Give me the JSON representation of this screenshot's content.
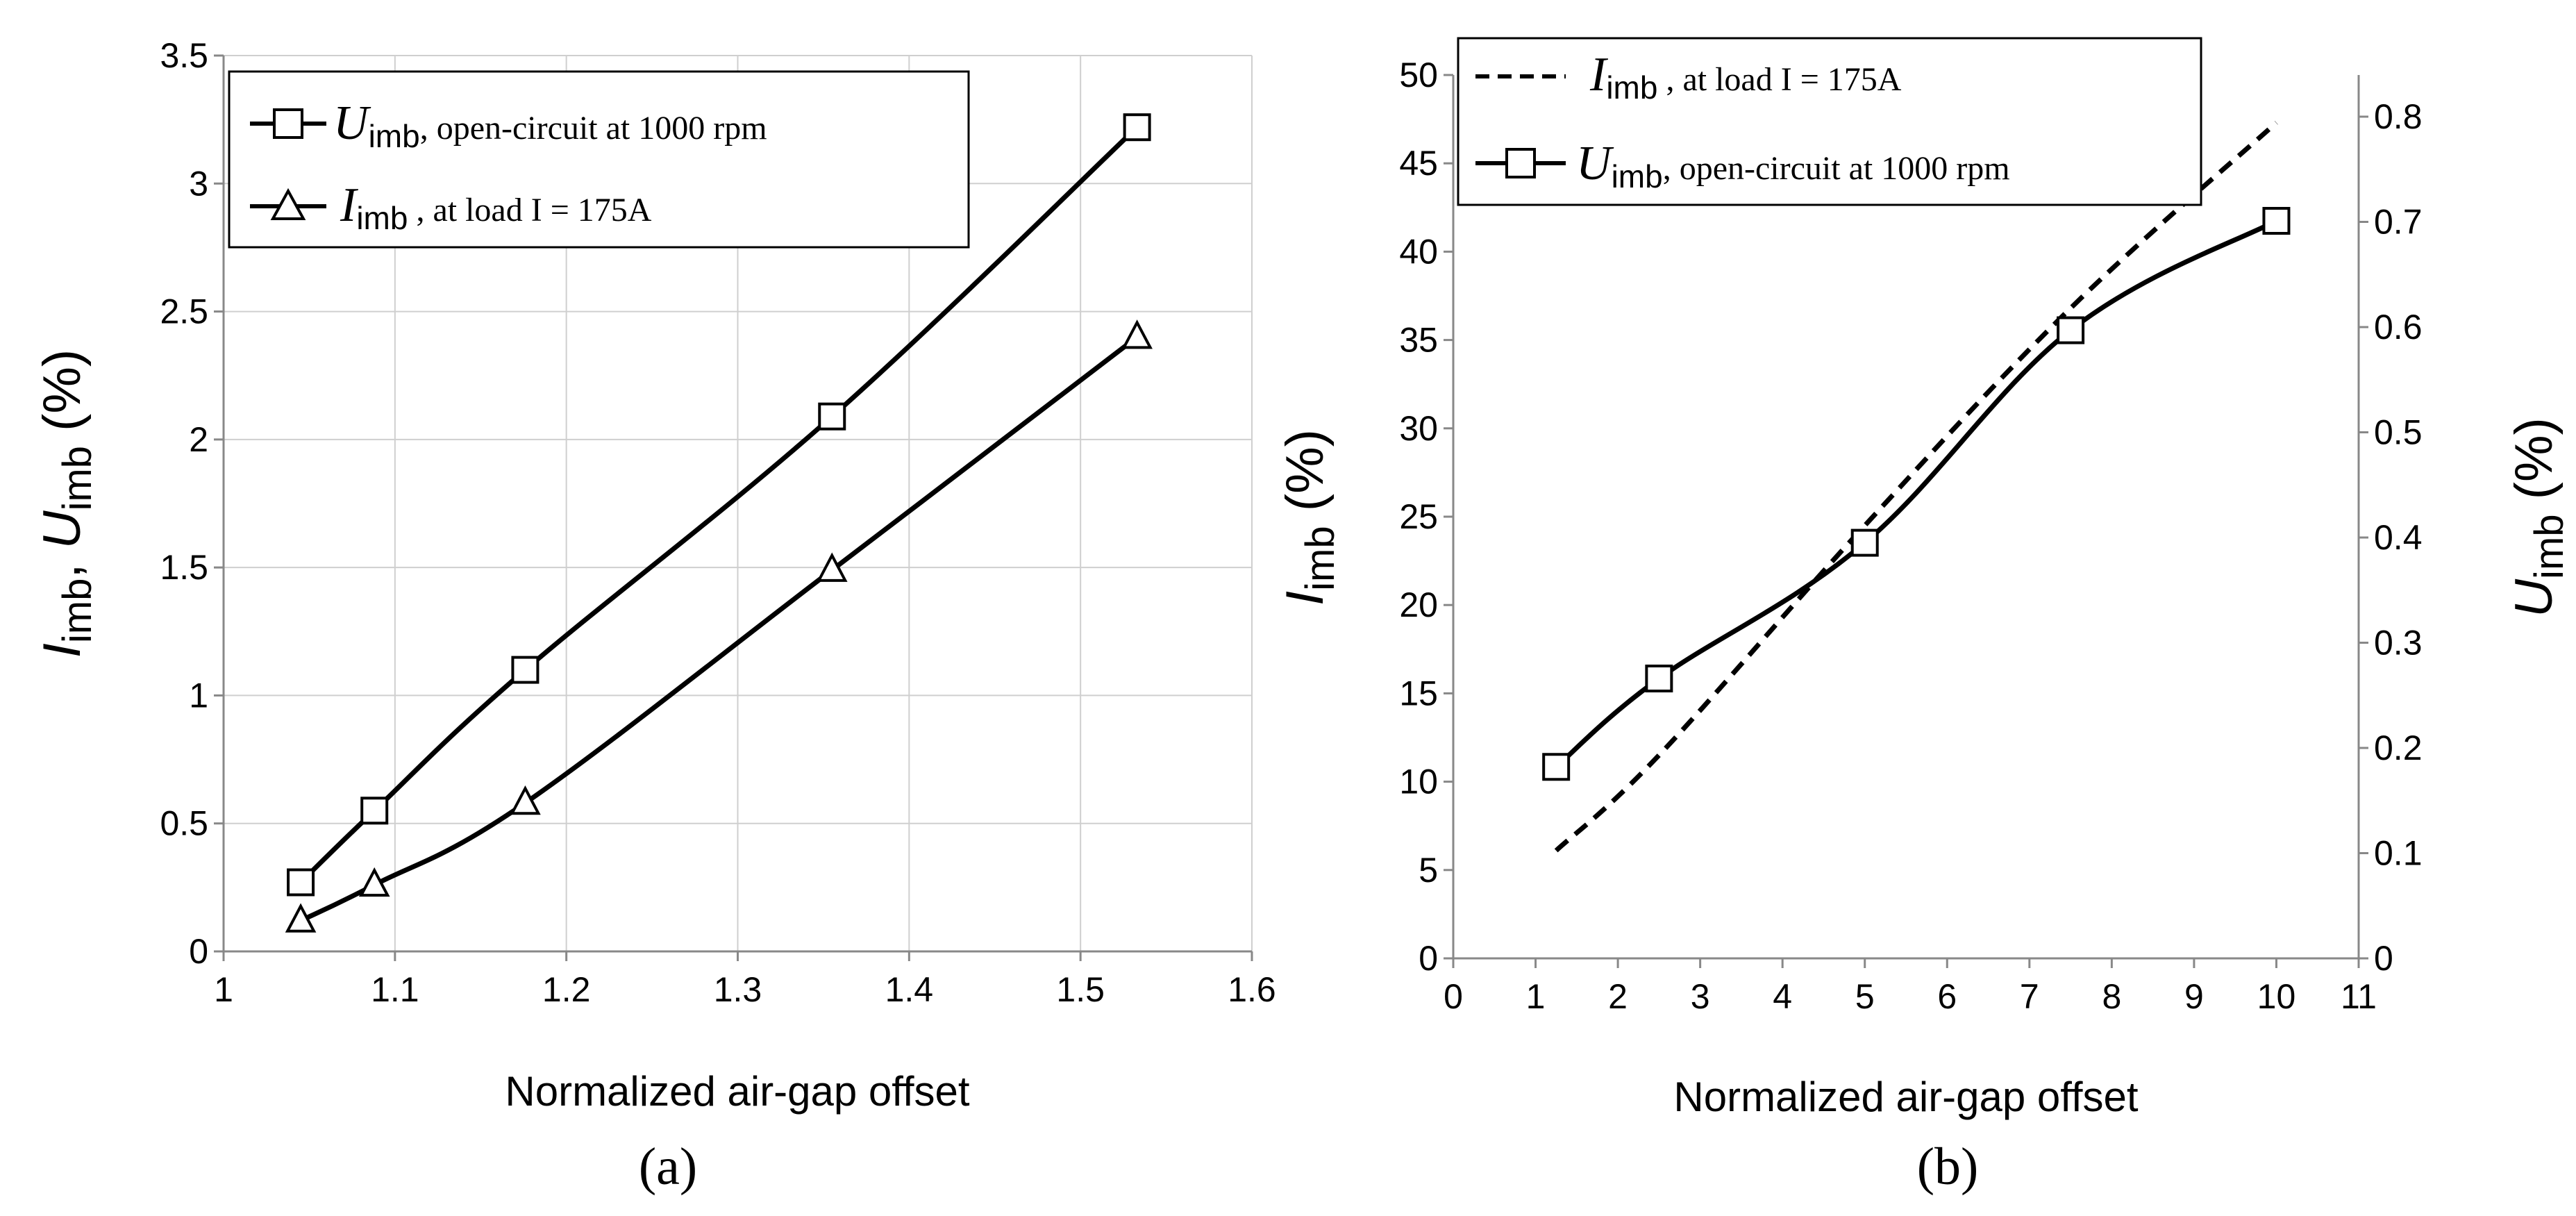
{
  "chart_data": [
    {
      "panel": "(a)",
      "type": "line",
      "xlabel": "Normalized air-gap offset",
      "ylabel": {
        "sym1": "I",
        "sub1": "imb",
        "sep": ", ",
        "sym2": "U",
        "sub2": "imb",
        "unit": " (%)"
      },
      "xlim": [
        1,
        1.6
      ],
      "ylim": [
        0,
        3.5
      ],
      "xticks": [
        "1",
        "1.1",
        "1.2",
        "1.3",
        "1.4",
        "1.5",
        "1.6"
      ],
      "yticks": [
        "0",
        "0.5",
        "1",
        "1.5",
        "2",
        "2.5",
        "3",
        "3.5"
      ],
      "grid": true,
      "legend_position": "top-left",
      "series": [
        {
          "name": "U_imb",
          "marker": "square",
          "style": "solid",
          "legend": {
            "sym": "U",
            "sub": "imb",
            "text": ", open-circuit at 1000 rpm"
          },
          "x": [
            1.045,
            1.088,
            1.176,
            1.355,
            1.533
          ],
          "y": [
            0.27,
            0.55,
            1.1,
            2.09,
            3.22
          ]
        },
        {
          "name": "I_imb",
          "marker": "triangle",
          "style": "solid",
          "legend": {
            "sym": "I",
            "sub": "imb",
            "text": " , at load I = 175A"
          },
          "x": [
            1.045,
            1.088,
            1.176,
            1.355,
            1.533
          ],
          "y": [
            0.12,
            0.26,
            0.58,
            1.49,
            2.4
          ]
        }
      ]
    },
    {
      "panel": "(b)",
      "type": "line",
      "xlabel": "Normalized air-gap offset",
      "ylabel_left": {
        "sym": "I",
        "sub": "imb",
        "unit": " (%)"
      },
      "ylabel_right": {
        "sym": "U",
        "sub": "imb",
        "unit": " (%)"
      },
      "xlim": [
        0,
        11
      ],
      "ylim_left": [
        0,
        50
      ],
      "ylim_right": [
        0,
        0.8
      ],
      "xticks": [
        "0",
        "1",
        "2",
        "3",
        "4",
        "5",
        "6",
        "7",
        "8",
        "9",
        "10",
        "11"
      ],
      "yticks_left": [
        "0",
        "5",
        "10",
        "15",
        "20",
        "25",
        "30",
        "35",
        "40",
        "45",
        "50"
      ],
      "yticks_right": [
        "0",
        "0.1",
        "0.2",
        "0.3",
        "0.4",
        "0.5",
        "0.6",
        "0.7",
        "0.8"
      ],
      "grid": false,
      "legend_position": "top-left",
      "series": [
        {
          "name": "I_imb",
          "marker": "none",
          "style": "dashed",
          "axis": "left",
          "legend": {
            "sym": "I",
            "sub": "imb",
            "text": " , at load I = 175A"
          },
          "x": [
            1.25,
            2.5,
            5,
            7.5,
            10
          ],
          "y": [
            6.1,
            11.5,
            24.5,
            36.8,
            47.3
          ]
        },
        {
          "name": "U_imb",
          "marker": "square",
          "style": "solid",
          "axis": "right",
          "legend": {
            "sym": "U",
            "sub": "imb",
            "text": ", open-circuit at 1000 rpm"
          },
          "x": [
            1.25,
            2.5,
            5,
            7.5,
            10
          ],
          "y": [
            0.182,
            0.266,
            0.395,
            0.597,
            0.701
          ]
        }
      ]
    }
  ]
}
